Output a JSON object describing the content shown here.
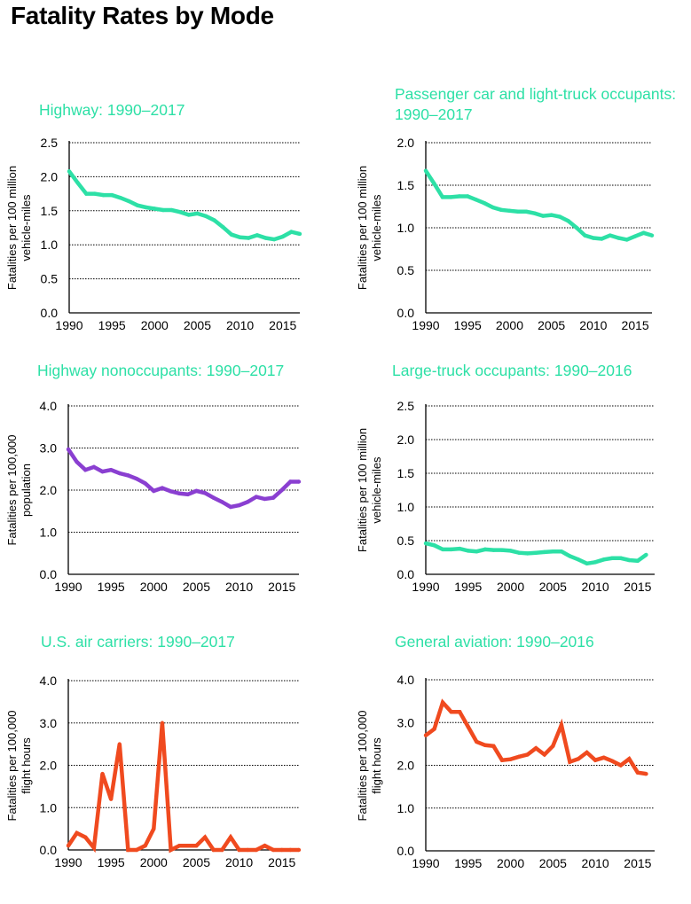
{
  "title": "Fatality Rates by Mode",
  "chart_data": [
    {
      "type": "line",
      "title": "Highway: 1990–2017",
      "ylabel": "Fatalities per 100 million\nvehicle-miles",
      "xlabel": "",
      "ylim": [
        0,
        2.5
      ],
      "yticks": [
        "0.0",
        "0.5",
        "1.0",
        "1.5",
        "2.0",
        "2.5"
      ],
      "xticks": [
        "1990",
        "1995",
        "2000",
        "2005",
        "2010",
        "2015"
      ],
      "x": [
        1990,
        1991,
        1992,
        1993,
        1994,
        1995,
        1996,
        1997,
        1998,
        1999,
        2000,
        2001,
        2002,
        2003,
        2004,
        2005,
        2006,
        2007,
        2008,
        2009,
        2010,
        2011,
        2012,
        2013,
        2014,
        2015,
        2016,
        2017
      ],
      "values": [
        2.08,
        1.91,
        1.75,
        1.75,
        1.73,
        1.73,
        1.69,
        1.64,
        1.58,
        1.55,
        1.53,
        1.51,
        1.51,
        1.48,
        1.44,
        1.46,
        1.42,
        1.36,
        1.26,
        1.15,
        1.11,
        1.1,
        1.14,
        1.1,
        1.08,
        1.12,
        1.19,
        1.16
      ],
      "color": "#2de0a6"
    },
    {
      "type": "line",
      "title": "Passenger car and light-truck occupants:\n1990–2017",
      "ylabel": "Fatalities per 100 million\nvehicle-miles",
      "xlabel": "",
      "ylim": [
        0,
        2.0
      ],
      "yticks": [
        "0.0",
        "0.5",
        "1.0",
        "1.5",
        "2.0"
      ],
      "xticks": [
        "1990",
        "1995",
        "2000",
        "2005",
        "2010",
        "2015"
      ],
      "x": [
        1990,
        1991,
        1992,
        1993,
        1994,
        1995,
        1996,
        1997,
        1998,
        1999,
        2000,
        2001,
        2002,
        2003,
        2004,
        2005,
        2006,
        2007,
        2008,
        2009,
        2010,
        2011,
        2012,
        2013,
        2014,
        2015,
        2016,
        2017
      ],
      "values": [
        1.67,
        1.52,
        1.36,
        1.36,
        1.37,
        1.37,
        1.33,
        1.29,
        1.24,
        1.21,
        1.2,
        1.19,
        1.19,
        1.17,
        1.14,
        1.15,
        1.13,
        1.08,
        1.0,
        0.91,
        0.88,
        0.87,
        0.91,
        0.88,
        0.86,
        0.9,
        0.94,
        0.91
      ],
      "color": "#2de0a6"
    },
    {
      "type": "line",
      "title": "Highway nonoccupants: 1990–2017",
      "ylabel": "Fatalities per 100,000\npopulation",
      "xlabel": "",
      "ylim": [
        0,
        4.0
      ],
      "yticks": [
        "0.0",
        "1.0",
        "2.0",
        "3.0",
        "4.0"
      ],
      "xticks": [
        "1990",
        "1995",
        "2000",
        "2005",
        "2010",
        "2015"
      ],
      "x": [
        1990,
        1991,
        1992,
        1993,
        1994,
        1995,
        1996,
        1997,
        1998,
        1999,
        2000,
        2001,
        2002,
        2003,
        2004,
        2005,
        2006,
        2007,
        2008,
        2009,
        2010,
        2011,
        2012,
        2013,
        2014,
        2015,
        2016,
        2017
      ],
      "values": [
        2.97,
        2.67,
        2.48,
        2.55,
        2.44,
        2.48,
        2.4,
        2.35,
        2.27,
        2.16,
        1.98,
        2.05,
        1.97,
        1.92,
        1.9,
        1.98,
        1.93,
        1.82,
        1.72,
        1.6,
        1.64,
        1.72,
        1.84,
        1.79,
        1.82,
        2.0,
        2.2,
        2.2
      ],
      "color": "#8a3fd1"
    },
    {
      "type": "line",
      "title": "Large-truck occupants: 1990–2016",
      "ylabel": "Fatalities per 100 million\nvehicle-miles",
      "xlabel": "",
      "ylim": [
        0,
        2.5
      ],
      "yticks": [
        "0.0",
        "0.5",
        "1.0",
        "1.5",
        "2.0",
        "2.5"
      ],
      "xticks": [
        "1990",
        "1995",
        "2000",
        "2005",
        "2010",
        "2015"
      ],
      "x": [
        1990,
        1991,
        1992,
        1993,
        1994,
        1995,
        1996,
        1997,
        1998,
        1999,
        2000,
        2001,
        2002,
        2003,
        2004,
        2005,
        2006,
        2007,
        2008,
        2009,
        2010,
        2011,
        2012,
        2013,
        2014,
        2015,
        2016
      ],
      "values": [
        0.46,
        0.43,
        0.37,
        0.37,
        0.38,
        0.35,
        0.34,
        0.37,
        0.36,
        0.36,
        0.35,
        0.32,
        0.31,
        0.32,
        0.33,
        0.34,
        0.34,
        0.27,
        0.22,
        0.16,
        0.18,
        0.22,
        0.24,
        0.24,
        0.21,
        0.2,
        0.29
      ],
      "color": "#2de0a6"
    },
    {
      "type": "line",
      "title": "U.S. air carriers: 1990–2017",
      "ylabel": "Fatalities per 100,000\nflight hours",
      "xlabel": "",
      "ylim": [
        0,
        4.0
      ],
      "yticks": [
        "0.0",
        "1.0",
        "2.0",
        "3.0",
        "4.0"
      ],
      "xticks": [
        "1990",
        "1995",
        "2000",
        "2005",
        "2010",
        "2015"
      ],
      "x": [
        1990,
        1991,
        1992,
        1993,
        1994,
        1995,
        1996,
        1997,
        1998,
        1999,
        2000,
        2001,
        2002,
        2003,
        2004,
        2005,
        2006,
        2007,
        2008,
        2009,
        2010,
        2011,
        2012,
        2013,
        2014,
        2015,
        2016,
        2017
      ],
      "values": [
        0.1,
        0.4,
        0.3,
        0.05,
        1.8,
        1.2,
        2.5,
        0.0,
        0.0,
        0.1,
        0.5,
        3.0,
        0.0,
        0.1,
        0.1,
        0.1,
        0.3,
        0.0,
        0.0,
        0.3,
        0.0,
        0.0,
        0.0,
        0.1,
        0.0,
        0.0,
        0.0,
        0.0
      ],
      "color": "#f04a1f"
    },
    {
      "type": "line",
      "title": "General aviation: 1990–2016",
      "ylabel": "Fatalities per 100,000\nflight hours",
      "xlabel": "",
      "ylim": [
        0,
        4.0
      ],
      "yticks": [
        "0.0",
        "1.0",
        "2.0",
        "3.0",
        "4.0"
      ],
      "xticks": [
        "1990",
        "1995",
        "2000",
        "2005",
        "2010",
        "2015"
      ],
      "x": [
        1990,
        1991,
        1992,
        1993,
        1994,
        1995,
        1996,
        1997,
        1998,
        1999,
        2000,
        2001,
        2002,
        2003,
        2004,
        2005,
        2006,
        2007,
        2008,
        2009,
        2010,
        2011,
        2012,
        2013,
        2014,
        2015,
        2016
      ],
      "values": [
        2.7,
        2.85,
        3.47,
        3.25,
        3.25,
        2.9,
        2.55,
        2.47,
        2.45,
        2.12,
        2.14,
        2.2,
        2.25,
        2.4,
        2.25,
        2.45,
        2.94,
        2.08,
        2.15,
        2.3,
        2.12,
        2.18,
        2.1,
        2.0,
        2.15,
        1.83,
        1.8
      ],
      "color": "#f04a1f"
    }
  ]
}
